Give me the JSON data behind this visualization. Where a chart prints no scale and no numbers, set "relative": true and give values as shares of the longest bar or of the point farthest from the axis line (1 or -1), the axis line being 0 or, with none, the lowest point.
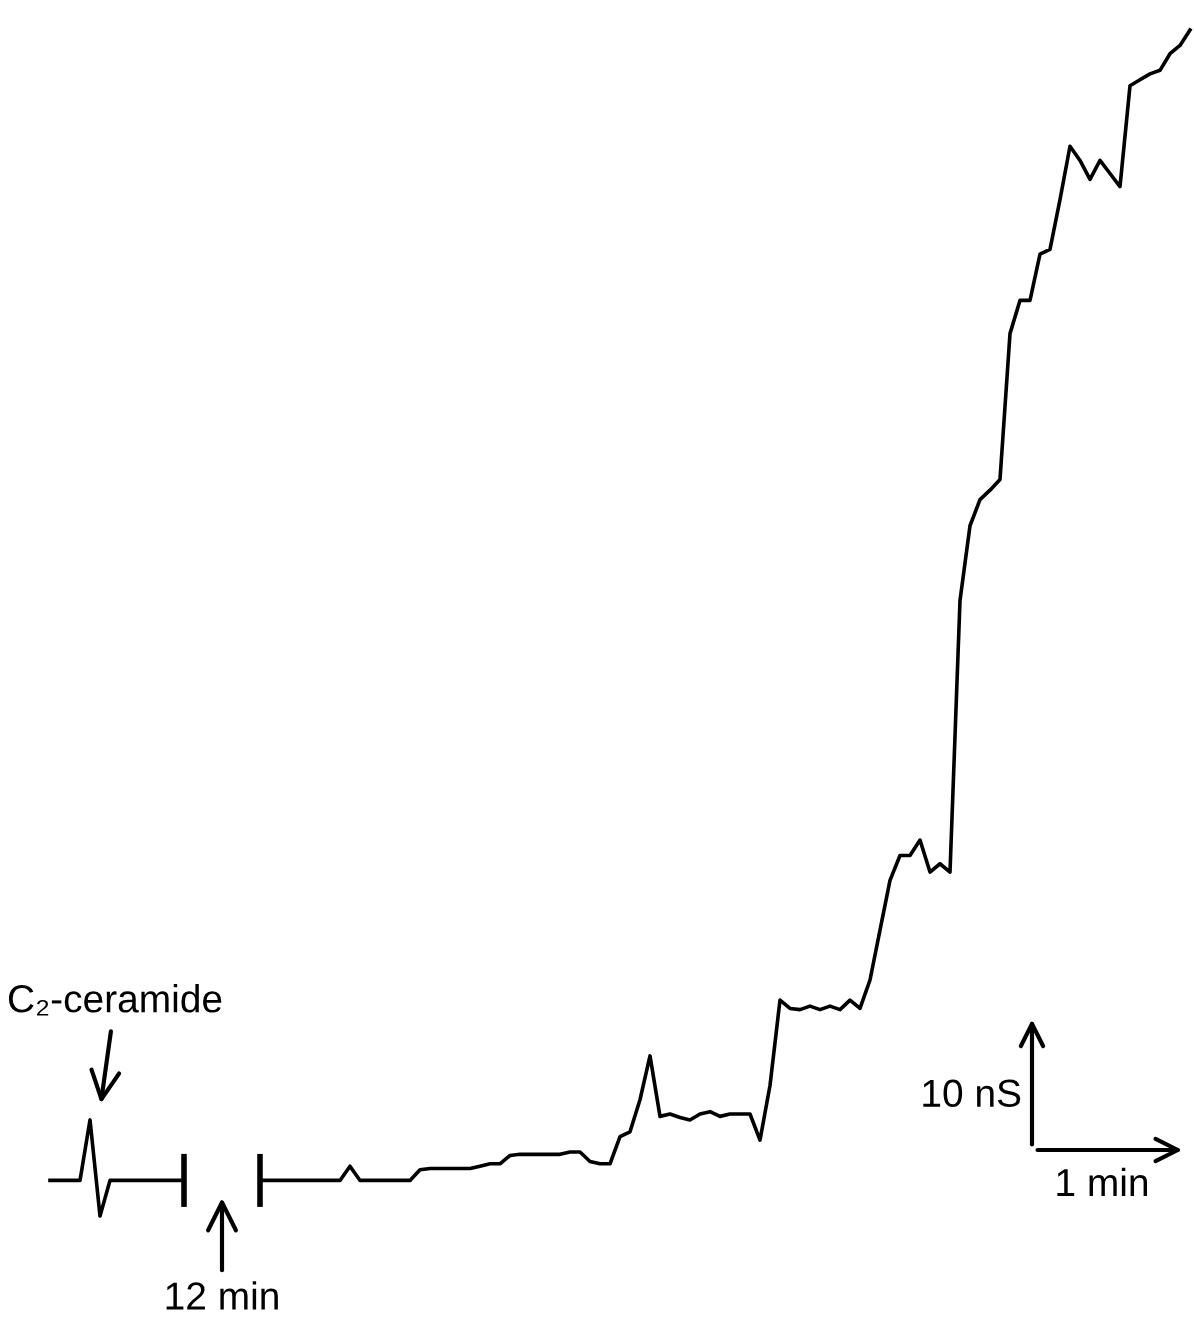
{
  "chart_data": {
    "type": "line",
    "relative": true,
    "categories": [
      null,
      null,
      null,
      null,
      null,
      null,
      null,
      null,
      null,
      null,
      null,
      null,
      null,
      null,
      null,
      null,
      null,
      null,
      null,
      null,
      null,
      null,
      null,
      null,
      null,
      null,
      null,
      null,
      null,
      null,
      null,
      null,
      null,
      null,
      null,
      null,
      null,
      null,
      null,
      null,
      null,
      null,
      null,
      null,
      null,
      null,
      null,
      null,
      null,
      null,
      null,
      null,
      null,
      null,
      null,
      null,
      null,
      null,
      null,
      null,
      null,
      null,
      null,
      null,
      null,
      null,
      null,
      null,
      null,
      null,
      null,
      null,
      null,
      null,
      null,
      null,
      null,
      null,
      null,
      null,
      null,
      null,
      null,
      null,
      null,
      null,
      null,
      null,
      null,
      null,
      null,
      null,
      null,
      null,
      null,
      null,
      null,
      null,
      null,
      null,
      null,
      null,
      null,
      null,
      null,
      null,
      null,
      null,
      null,
      null,
      null,
      null,
      null,
      null,
      null
    ],
    "series": [
      {
        "color": "#000000",
        "values": [
          0.03,
          0.03,
          0.03,
          0.03,
          0.081,
          0,
          0.03,
          0.03,
          0.03,
          0.03,
          0.03,
          0.03,
          0.03,
          0.03,
          null,
          null,
          null,
          null,
          null,
          null,
          null,
          null,
          null,
          null,
          null,
          null,
          null,
          null,
          null,
          null,
          null,
          null,
          null,
          null,
          null,
          null,
          null,
          null,
          null,
          null,
          null,
          null,
          null,
          null,
          null,
          null,
          null,
          null,
          null,
          null,
          null,
          null,
          null,
          null,
          null,
          null,
          null,
          null,
          null,
          null,
          null,
          null,
          null,
          null,
          null,
          null,
          null,
          null,
          null,
          null,
          null,
          null,
          null,
          null,
          null,
          null,
          null,
          null,
          null,
          null,
          null,
          null,
          null,
          null,
          null,
          null,
          null,
          null,
          null,
          null,
          null,
          null,
          null,
          null,
          null,
          null,
          null,
          null,
          null,
          null,
          null,
          null,
          null,
          null,
          null,
          null,
          null,
          null,
          null,
          null,
          null,
          null,
          null,
          null,
          null
        ]
      },
      {
        "color": "#000000",
        "values": [
          null,
          null,
          null,
          null,
          null,
          null,
          null,
          null,
          null,
          null,
          null,
          null,
          null,
          null,
          null,
          null,
          null,
          null,
          null,
          null,
          null,
          0.03,
          0.03,
          0.03,
          0.03,
          0.03,
          0.03,
          0.03,
          0.03,
          0.03,
          0.042,
          0.03,
          0.03,
          0.03,
          0.03,
          0.03,
          0.03,
          0.039,
          0.04,
          0.04,
          0.04,
          0.04,
          0.04,
          0.042,
          0.044,
          0.044,
          0.051,
          0.052,
          0.052,
          0.052,
          0.052,
          0.052,
          0.054,
          0.054,
          0.046,
          0.044,
          0.044,
          0.067,
          0.071,
          0.098,
          0.135,
          0.084,
          0.086,
          0.083,
          0.081,
          0.086,
          0.088,
          0.084,
          0.086,
          0.086,
          0.086,
          0.064,
          0.11,
          0.182,
          0.175,
          0.174,
          0.177,
          0.174,
          0.177,
          0.174,
          0.182,
          0.175,
          0.199,
          0.241,
          0.283,
          0.304,
          0.304,
          0.317,
          0.29,
          0.297,
          0.29,
          0.519,
          0.582,
          0.604,
          0.612,
          0.621,
          0.744,
          0.772,
          0.772,
          0.811,
          0.815,
          0.857,
          0.902,
          0.89,
          0.874,
          0.89,
          0.879,
          0.868,
          0.953,
          0.958,
          0.963,
          0.966,
          0.98,
          0.987,
          1
        ]
      }
    ],
    "annotations": [
      "C₂-ceramide",
      "12 min",
      "10 nS",
      "1 min"
    ],
    "legend": false
  }
}
